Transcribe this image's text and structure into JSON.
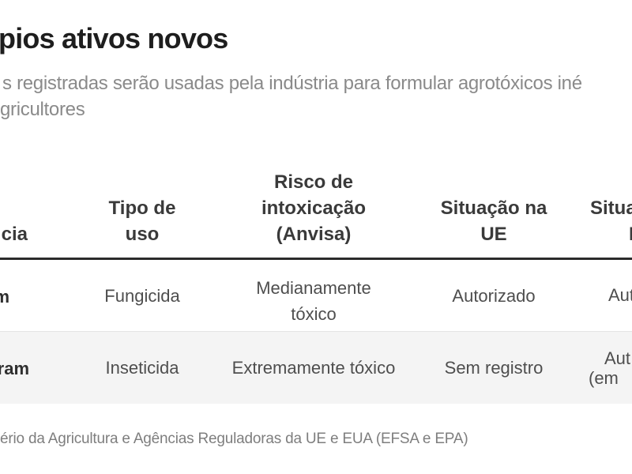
{
  "infographic": {
    "title_fragment": "pios ativos novos",
    "subtitle_line1_fragment": "s registradas serão usadas pela indústria para formular agrotóxicos iné",
    "subtitle_line2_fragment": "gricultores",
    "source_fragment": "ério da Agricultura e Agências Reguladoras da UE e EUA (EFSA e EPA)"
  },
  "table": {
    "headers": {
      "substance_fragment": "cia",
      "use_type_lines": [
        "Tipo de",
        "uso"
      ],
      "risk_lines": [
        "Risco de",
        "intoxicação",
        "(Anvisa)"
      ],
      "eu_lines": [
        "Situação na",
        "UE"
      ],
      "us_line1_fragment": "Situa",
      "us_line2_fragment": "E"
    },
    "rows": [
      {
        "substance_fragment": "m",
        "use_type": "Fungicida",
        "risk_lines": [
          "Medianamente",
          "tóxico"
        ],
        "eu_status": "Autorizado",
        "us_lines": [
          "Aut"
        ]
      },
      {
        "substance_fragment": "ram",
        "use_type": "Inseticida",
        "risk": "Extremamente tóxico",
        "eu_status": "Sem registro",
        "us_lines": [
          "Aut",
          "(em"
        ]
      }
    ]
  },
  "chart_data": {
    "type": "table",
    "title": "pios ativos novos",
    "subtitle_lines": [
      "s registradas serão usadas pela indústria para formular agrotóxicos iné",
      "gricultores"
    ],
    "columns": [
      "cia",
      "Tipo de uso",
      "Risco de intoxicação (Anvisa)",
      "Situação na UE",
      "Situa / E"
    ],
    "rows": [
      [
        "m",
        "Fungicida",
        "Medianamente tóxico",
        "Autorizado",
        "Aut"
      ],
      [
        "ram",
        "Inseticida",
        "Extremamente tóxico",
        "Sem registro",
        "Aut / (em"
      ]
    ],
    "source": "ério da Agricultura e Agências Reguladoras da UE e EUA (EFSA e EPA)",
    "layout": {
      "header_rule": true,
      "alternating_row_shading": true,
      "cropped_left_and_right": true
    }
  },
  "colors": {
    "title_text": "#1e1e1e",
    "subtitle_text": "#8a8a8a",
    "header_text": "#3a3a3a",
    "body_text": "#4e4e4e",
    "header_rule": "#2b2b2b",
    "alt_row_background": "#f4f4f4",
    "source_text": "#7e7e7e"
  }
}
